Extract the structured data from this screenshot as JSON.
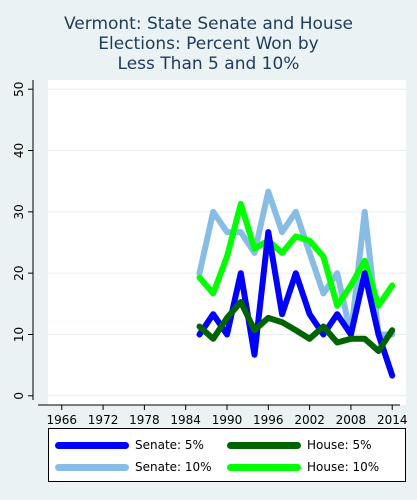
{
  "chart_data": {
    "type": "line",
    "title": "Vermont: State Senate and House\nElections: Percent Won by\nLess Than 5 and 10%",
    "xlabel": "",
    "ylabel": "",
    "x_ticks": [
      1966,
      1972,
      1978,
      1984,
      1990,
      1996,
      2002,
      2008,
      2014
    ],
    "y_ticks": [
      0,
      10,
      20,
      30,
      40,
      50
    ],
    "xlim": [
      1964,
      2016
    ],
    "ylim": [
      -1.5,
      51.5
    ],
    "grid": true,
    "legend_position": "bottom",
    "x": [
      1986,
      1988,
      1990,
      1992,
      1994,
      1996,
      1998,
      2000,
      2002,
      2004,
      2006,
      2008,
      2010,
      2012,
      2014
    ],
    "series": [
      {
        "name": "Senate: 5%",
        "color": "#0000ff",
        "values": [
          10,
          13.3,
          10,
          20,
          6.7,
          26.7,
          13.3,
          20,
          13.3,
          10,
          13.3,
          10,
          20,
          10,
          3.3
        ]
      },
      {
        "name": "Senate: 10%",
        "color": "#87bde4",
        "values": [
          20,
          30,
          26.7,
          26.7,
          23.3,
          33.3,
          26.7,
          30,
          23.3,
          16.7,
          20,
          10,
          30,
          10,
          10
        ]
      },
      {
        "name": "House: 5%",
        "color": "#006400",
        "values": [
          11.3,
          9.3,
          12.7,
          15.3,
          10.7,
          12.7,
          12,
          10.7,
          9.3,
          11.3,
          8.7,
          9.3,
          9.3,
          7.3,
          10.7
        ]
      },
      {
        "name": "House: 10%",
        "color": "#00ff00",
        "values": [
          19.3,
          16.7,
          22.7,
          31.3,
          24,
          25.3,
          23.3,
          26,
          25.3,
          22.7,
          14.7,
          18,
          22,
          14.7,
          18
        ]
      }
    ],
    "draw_order": [
      1,
      3,
      0,
      2
    ],
    "legend_order": [
      0,
      2,
      1,
      3
    ]
  }
}
